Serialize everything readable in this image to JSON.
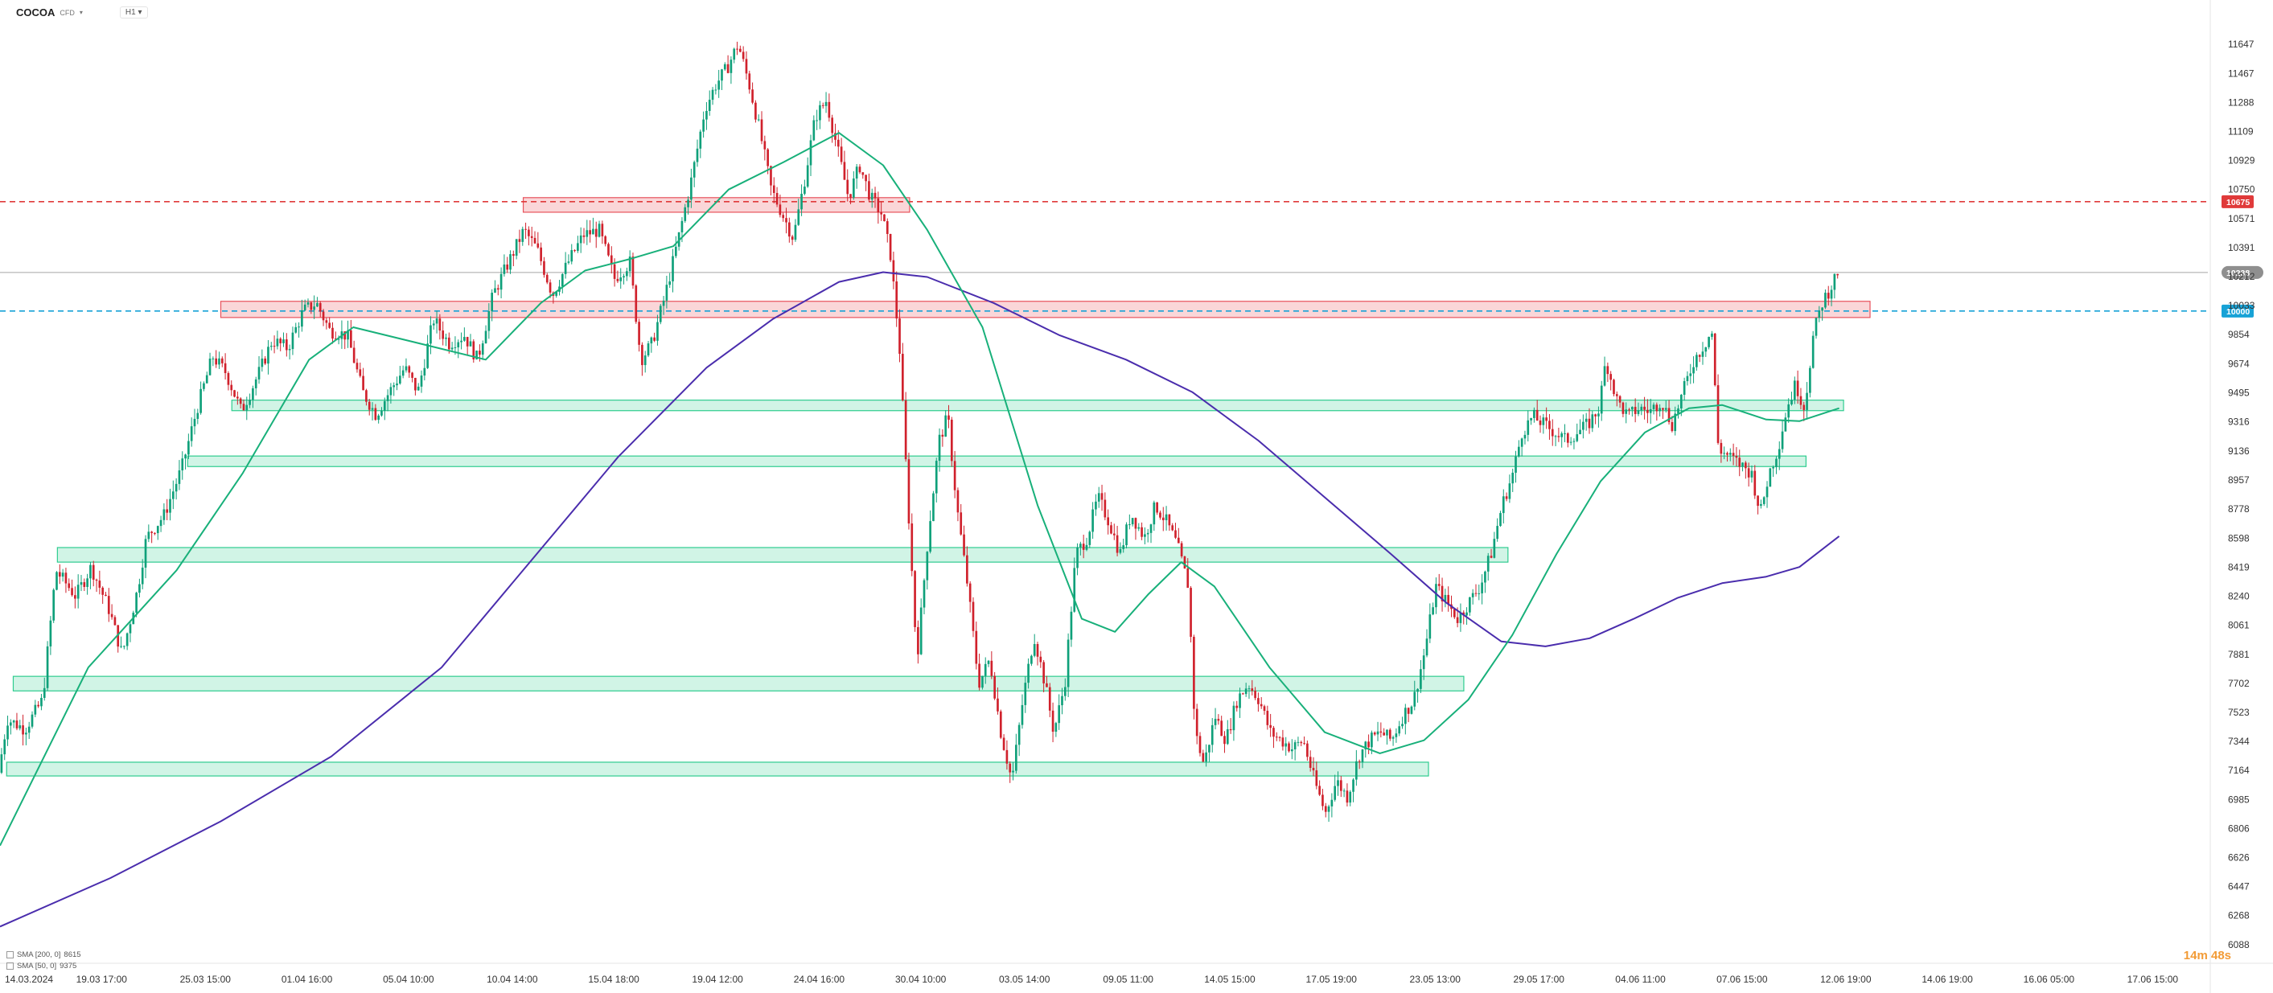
{
  "header": {
    "symbol": "COCOA",
    "subtitle": "CFD",
    "timeframe": "H1"
  },
  "indicators": [
    {
      "label": "SMA [200, 0]",
      "value": "8615"
    },
    {
      "label": "SMA [50, 0]",
      "value": "9375"
    }
  ],
  "timer": "14m 48s",
  "colors": {
    "bull": "#0fa07a",
    "bear": "#d0212c",
    "sma50": "#18b07a",
    "sma200": "#4a2dad",
    "support": "#2ecc8f",
    "resistance": "#e8525c",
    "red_line": "#e03a3a",
    "blue_line": "#17a2d6",
    "current_price_bg": "#8f8f8f"
  },
  "chart_data": {
    "type": "candlestick",
    "title": "",
    "xlabel": "",
    "ylabel": "",
    "ylim": [
      6088,
      11800
    ],
    "grid": false,
    "y_ticks": [
      11647,
      11467,
      11288,
      11109,
      10929,
      10750,
      10571,
      10391,
      10212,
      10033,
      9854,
      9674,
      9495,
      9316,
      9136,
      8957,
      8778,
      8598,
      8419,
      8240,
      8061,
      7881,
      7702,
      7523,
      7344,
      7164,
      6985,
      6806,
      6626,
      6447,
      6268,
      6088
    ],
    "x_ticks": [
      "14.03.2024",
      "19.03 17:00",
      "25.03 15:00",
      "01.04 16:00",
      "05.04 10:00",
      "10.04 14:00",
      "15.04 18:00",
      "19.04 12:00",
      "24.04 16:00",
      "30.04 10:00",
      "03.05 14:00",
      "09.05 11:00",
      "14.05 15:00",
      "17.05 19:00",
      "23.05 13:00",
      "29.05 17:00",
      "04.06 11:00",
      "07.06 15:00",
      "12.06 19:00",
      "14.06 19:00",
      "16.06 05:00",
      "17.06 15:00"
    ],
    "x_tick_pos": [
      0,
      0.046,
      0.093,
      0.139,
      0.185,
      0.232,
      0.278,
      0.325,
      0.371,
      0.417,
      0.464,
      0.511,
      0.557,
      0.603,
      0.65,
      0.697,
      0.743,
      0.789,
      0.836,
      0.882,
      0.928,
      0.975
    ],
    "price_lines": [
      {
        "label": "10675",
        "value": 10675,
        "color": "#e03a3a",
        "style": "dashed"
      },
      {
        "label": "10000",
        "value": 10000,
        "color": "#17a2d6",
        "style": "dashed"
      },
      {
        "label": "10238",
        "value": 10238,
        "color": "#8f8f8f",
        "style": "solid"
      }
    ],
    "zones": [
      {
        "kind": "resistance",
        "from": 10610,
        "to": 10700,
        "x_start": 0.237,
        "x_end": 0.412
      },
      {
        "kind": "resistance",
        "from": 9960,
        "to": 10060,
        "x_start": 0.1,
        "x_end": 0.847
      },
      {
        "kind": "support",
        "from": 9385,
        "to": 9450,
        "x_start": 0.105,
        "x_end": 0.835
      },
      {
        "kind": "support",
        "from": 9040,
        "to": 9105,
        "x_start": 0.085,
        "x_end": 0.818
      },
      {
        "kind": "support",
        "from": 8450,
        "to": 8540,
        "x_start": 0.026,
        "x_end": 0.683
      },
      {
        "kind": "support",
        "from": 7655,
        "to": 7745,
        "x_start": 0.006,
        "x_end": 0.663
      },
      {
        "kind": "support",
        "from": 7130,
        "to": 7215,
        "x_start": 0.003,
        "x_end": 0.647
      }
    ],
    "closes": [
      [
        0,
        7150
      ],
      [
        0.004,
        7480
      ],
      [
        0.012,
        7420
      ],
      [
        0.02,
        7600
      ],
      [
        0.026,
        8400
      ],
      [
        0.035,
        8240
      ],
      [
        0.042,
        8420
      ],
      [
        0.05,
        8160
      ],
      [
        0.056,
        7880
      ],
      [
        0.063,
        8280
      ],
      [
        0.067,
        8600
      ],
      [
        0.075,
        8740
      ],
      [
        0.083,
        9030
      ],
      [
        0.09,
        9400
      ],
      [
        0.097,
        9720
      ],
      [
        0.103,
        9620
      ],
      [
        0.11,
        9380
      ],
      [
        0.118,
        9620
      ],
      [
        0.124,
        9820
      ],
      [
        0.131,
        9770
      ],
      [
        0.138,
        10000
      ],
      [
        0.144,
        10050
      ],
      [
        0.15,
        9880
      ],
      [
        0.158,
        9850
      ],
      [
        0.165,
        9500
      ],
      [
        0.171,
        9360
      ],
      [
        0.177,
        9500
      ],
      [
        0.184,
        9650
      ],
      [
        0.19,
        9500
      ],
      [
        0.197,
        9950
      ],
      [
        0.204,
        9800
      ],
      [
        0.211,
        9850
      ],
      [
        0.217,
        9700
      ],
      [
        0.224,
        10100
      ],
      [
        0.231,
        10300
      ],
      [
        0.238,
        10500
      ],
      [
        0.244,
        10380
      ],
      [
        0.251,
        10100
      ],
      [
        0.258,
        10300
      ],
      [
        0.265,
        10470
      ],
      [
        0.272,
        10500
      ],
      [
        0.279,
        10200
      ],
      [
        0.286,
        10300
      ],
      [
        0.291,
        9700
      ],
      [
        0.296,
        9800
      ],
      [
        0.302,
        10100
      ],
      [
        0.308,
        10450
      ],
      [
        0.314,
        10820
      ],
      [
        0.32,
        11250
      ],
      [
        0.325,
        11400
      ],
      [
        0.33,
        11500
      ],
      [
        0.335,
        11650
      ],
      [
        0.34,
        11400
      ],
      [
        0.345,
        11100
      ],
      [
        0.35,
        10750
      ],
      [
        0.355,
        10600
      ],
      [
        0.36,
        10450
      ],
      [
        0.365,
        10800
      ],
      [
        0.37,
        11200
      ],
      [
        0.375,
        11300
      ],
      [
        0.38,
        11000
      ],
      [
        0.385,
        10700
      ],
      [
        0.39,
        10900
      ],
      [
        0.395,
        10700
      ],
      [
        0.4,
        10600
      ],
      [
        0.404,
        10350
      ],
      [
        0.408,
        9800
      ],
      [
        0.412,
        8800
      ],
      [
        0.416,
        7850
      ],
      [
        0.421,
        8600
      ],
      [
        0.426,
        9200
      ],
      [
        0.43,
        9350
      ],
      [
        0.434,
        8800
      ],
      [
        0.439,
        8300
      ],
      [
        0.444,
        7700
      ],
      [
        0.449,
        7850
      ],
      [
        0.454,
        7400
      ],
      [
        0.459,
        7100
      ],
      [
        0.464,
        7600
      ],
      [
        0.469,
        8000
      ],
      [
        0.474,
        7700
      ],
      [
        0.478,
        7400
      ],
      [
        0.483,
        7700
      ],
      [
        0.488,
        8500
      ],
      [
        0.493,
        8600
      ],
      [
        0.498,
        8850
      ],
      [
        0.503,
        8700
      ],
      [
        0.508,
        8500
      ],
      [
        0.513,
        8750
      ],
      [
        0.519,
        8600
      ],
      [
        0.524,
        8800
      ],
      [
        0.529,
        8700
      ],
      [
        0.534,
        8550
      ],
      [
        0.539,
        8300
      ],
      [
        0.542,
        7400
      ],
      [
        0.546,
        7200
      ],
      [
        0.551,
        7500
      ],
      [
        0.556,
        7350
      ],
      [
        0.561,
        7600
      ],
      [
        0.566,
        7700
      ],
      [
        0.571,
        7600
      ],
      [
        0.576,
        7400
      ],
      [
        0.581,
        7350
      ],
      [
        0.586,
        7300
      ],
      [
        0.591,
        7350
      ],
      [
        0.596,
        7100
      ],
      [
        0.601,
        6900
      ],
      [
        0.606,
        7100
      ],
      [
        0.611,
        7000
      ],
      [
        0.616,
        7250
      ],
      [
        0.621,
        7350
      ],
      [
        0.626,
        7400
      ],
      [
        0.631,
        7350
      ],
      [
        0.636,
        7500
      ],
      [
        0.641,
        7600
      ],
      [
        0.646,
        7900
      ],
      [
        0.651,
        8300
      ],
      [
        0.656,
        8200
      ],
      [
        0.661,
        8100
      ],
      [
        0.666,
        8200
      ],
      [
        0.671,
        8300
      ],
      [
        0.676,
        8500
      ],
      [
        0.681,
        8800
      ],
      [
        0.686,
        9000
      ],
      [
        0.69,
        9250
      ],
      [
        0.695,
        9350
      ],
      [
        0.7,
        9300
      ],
      [
        0.705,
        9250
      ],
      [
        0.71,
        9200
      ],
      [
        0.715,
        9250
      ],
      [
        0.72,
        9300
      ],
      [
        0.725,
        9400
      ],
      [
        0.728,
        9700
      ],
      [
        0.733,
        9450
      ],
      [
        0.738,
        9350
      ],
      [
        0.743,
        9400
      ],
      [
        0.748,
        9380
      ],
      [
        0.753,
        9450
      ],
      [
        0.758,
        9300
      ],
      [
        0.763,
        9500
      ],
      [
        0.768,
        9700
      ],
      [
        0.773,
        9800
      ],
      [
        0.776,
        9880
      ],
      [
        0.779,
        9150
      ],
      [
        0.784,
        9100
      ],
      [
        0.789,
        9050
      ],
      [
        0.794,
        9000
      ],
      [
        0.798,
        8750
      ],
      [
        0.802,
        9000
      ],
      [
        0.806,
        9150
      ],
      [
        0.81,
        9400
      ],
      [
        0.814,
        9550
      ],
      [
        0.818,
        9400
      ],
      [
        0.822,
        9850
      ],
      [
        0.826,
        10050
      ],
      [
        0.83,
        10150
      ],
      [
        0.833,
        10240
      ]
    ],
    "sma50": [
      [
        0,
        6700
      ],
      [
        0.04,
        7800
      ],
      [
        0.08,
        8400
      ],
      [
        0.11,
        9000
      ],
      [
        0.14,
        9700
      ],
      [
        0.16,
        9900
      ],
      [
        0.19,
        9800
      ],
      [
        0.22,
        9700
      ],
      [
        0.245,
        10050
      ],
      [
        0.265,
        10250
      ],
      [
        0.285,
        10320
      ],
      [
        0.305,
        10400
      ],
      [
        0.33,
        10750
      ],
      [
        0.355,
        10920
      ],
      [
        0.38,
        11100
      ],
      [
        0.4,
        10900
      ],
      [
        0.42,
        10500
      ],
      [
        0.445,
        9900
      ],
      [
        0.47,
        8800
      ],
      [
        0.49,
        8100
      ],
      [
        0.505,
        8020
      ],
      [
        0.52,
        8250
      ],
      [
        0.535,
        8450
      ],
      [
        0.55,
        8300
      ],
      [
        0.575,
        7800
      ],
      [
        0.6,
        7400
      ],
      [
        0.625,
        7270
      ],
      [
        0.645,
        7350
      ],
      [
        0.665,
        7600
      ],
      [
        0.685,
        8000
      ],
      [
        0.705,
        8500
      ],
      [
        0.725,
        8950
      ],
      [
        0.745,
        9250
      ],
      [
        0.765,
        9400
      ],
      [
        0.78,
        9420
      ],
      [
        0.8,
        9330
      ],
      [
        0.815,
        9320
      ],
      [
        0.833,
        9400
      ]
    ],
    "sma200": [
      [
        0,
        6200
      ],
      [
        0.05,
        6500
      ],
      [
        0.1,
        6850
      ],
      [
        0.15,
        7250
      ],
      [
        0.2,
        7800
      ],
      [
        0.24,
        8450
      ],
      [
        0.28,
        9100
      ],
      [
        0.32,
        9650
      ],
      [
        0.35,
        9950
      ],
      [
        0.38,
        10180
      ],
      [
        0.4,
        10240
      ],
      [
        0.42,
        10210
      ],
      [
        0.45,
        10050
      ],
      [
        0.48,
        9850
      ],
      [
        0.51,
        9700
      ],
      [
        0.54,
        9500
      ],
      [
        0.57,
        9200
      ],
      [
        0.6,
        8850
      ],
      [
        0.63,
        8500
      ],
      [
        0.655,
        8200
      ],
      [
        0.68,
        7960
      ],
      [
        0.7,
        7930
      ],
      [
        0.72,
        7980
      ],
      [
        0.74,
        8100
      ],
      [
        0.76,
        8230
      ],
      [
        0.78,
        8320
      ],
      [
        0.8,
        8360
      ],
      [
        0.815,
        8420
      ],
      [
        0.833,
        8610
      ]
    ]
  }
}
